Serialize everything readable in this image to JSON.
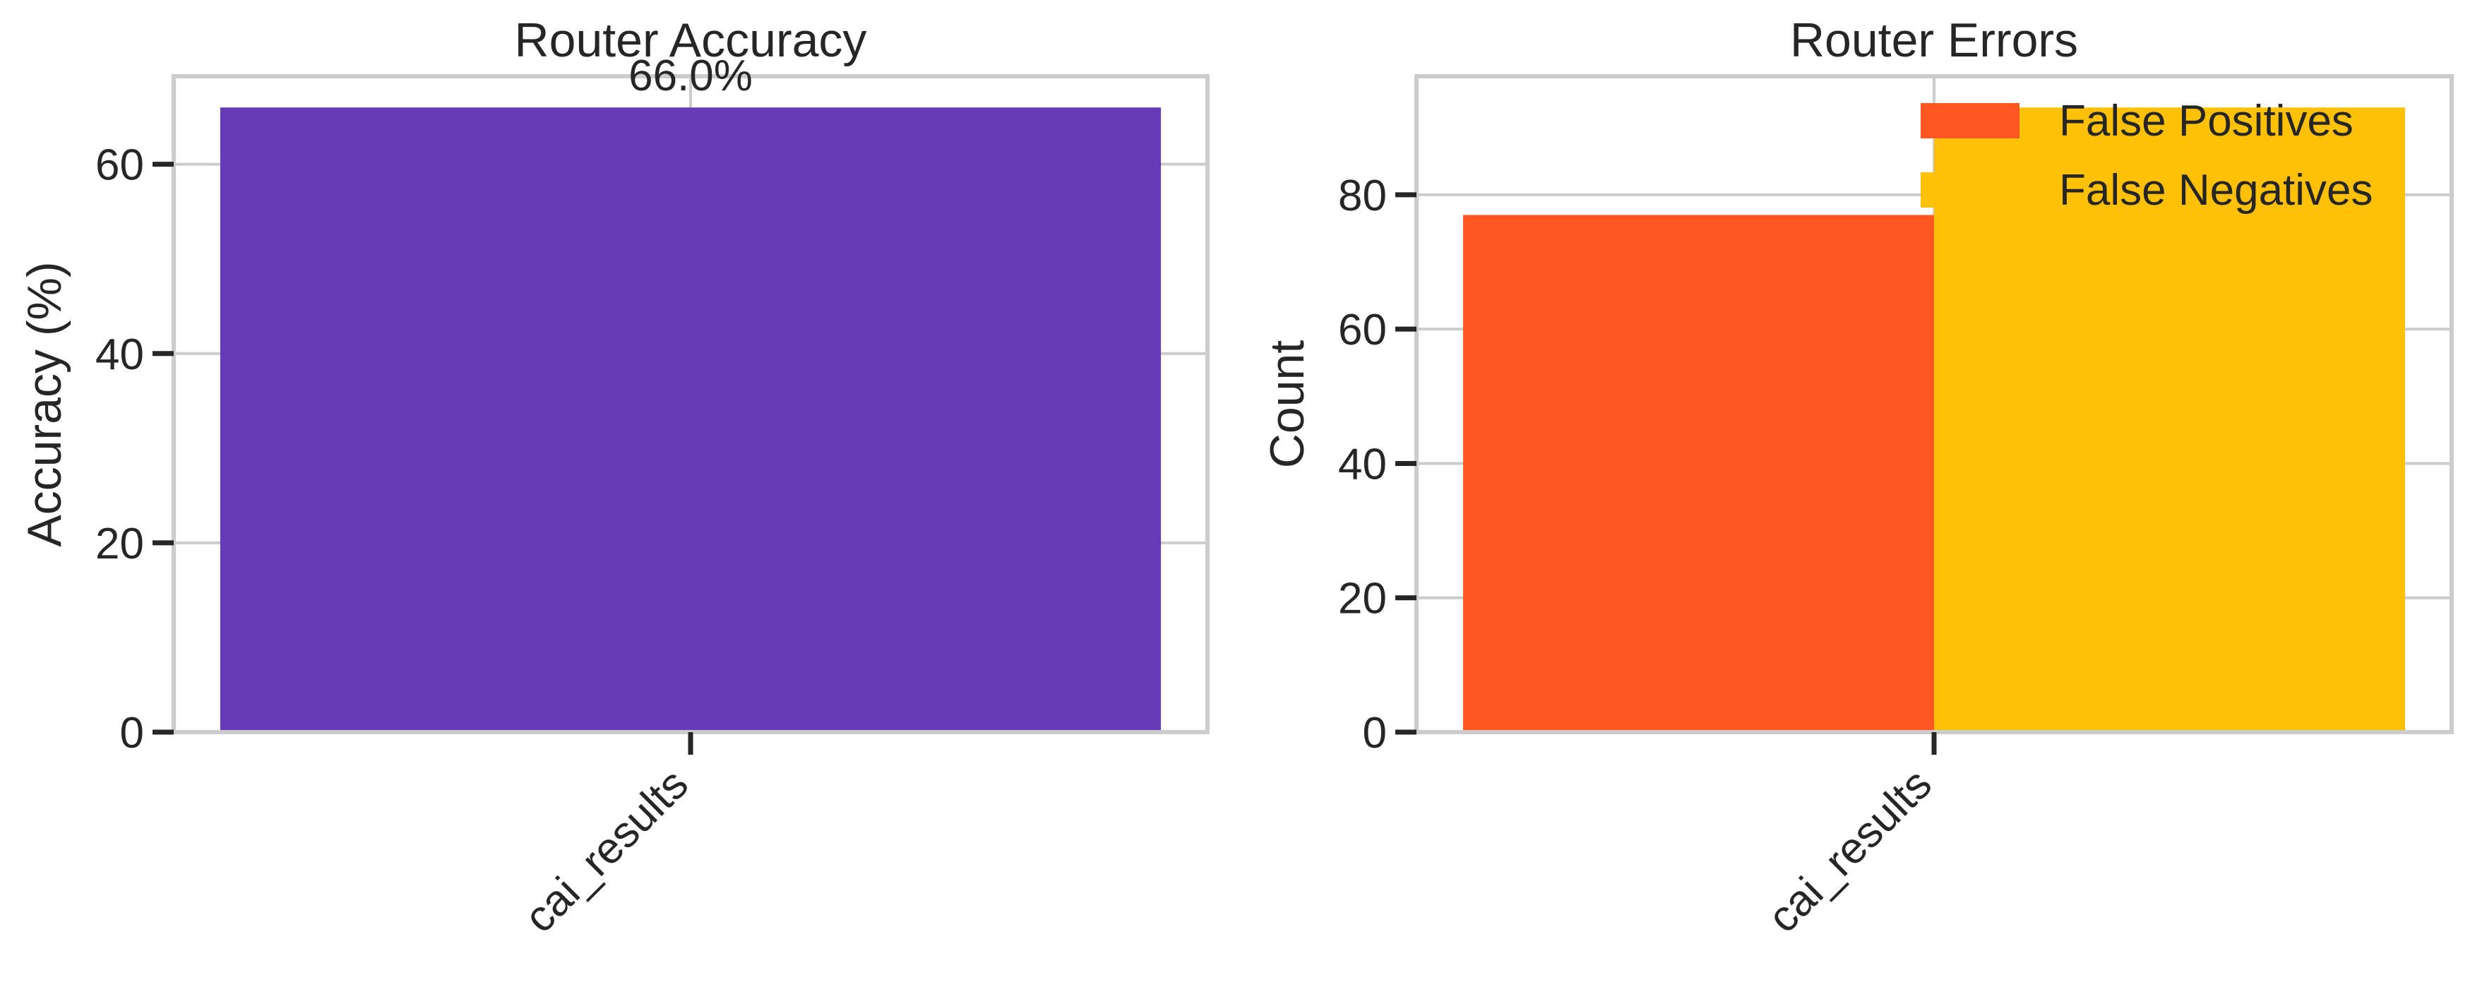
{
  "colors": {
    "background": "#ffffff",
    "frame": "#cccccc",
    "grid": "#cccccc",
    "text": "#262626",
    "accuracy_bar": "#673ab7",
    "false_positives": "#ff5722",
    "false_negatives": "#ffc107"
  },
  "chart_data": [
    {
      "type": "bar",
      "title": "Router Accuracy",
      "xlabel": "",
      "ylabel": "Accuracy (%)",
      "categories": [
        "cai_results"
      ],
      "series": [
        {
          "values": [
            66.0
          ],
          "color": "#673ab7"
        }
      ],
      "data_labels": [
        "66.0%"
      ],
      "ylim": [
        0,
        69.3
      ],
      "yticks": [
        0,
        20,
        40,
        60
      ],
      "grid": true,
      "legend": "none"
    },
    {
      "type": "bar",
      "title": "Router Errors",
      "xlabel": "",
      "ylabel": "Count",
      "categories": [
        "cai_results"
      ],
      "series": [
        {
          "name": "False Positives",
          "values": [
            77
          ],
          "color": "#ff5722"
        },
        {
          "name": "False Negatives",
          "values": [
            93
          ],
          "color": "#ffc107"
        }
      ],
      "ylim": [
        0,
        97.65
      ],
      "yticks": [
        0,
        20,
        40,
        60,
        80
      ],
      "grid": true,
      "legend": "top-right"
    }
  ]
}
